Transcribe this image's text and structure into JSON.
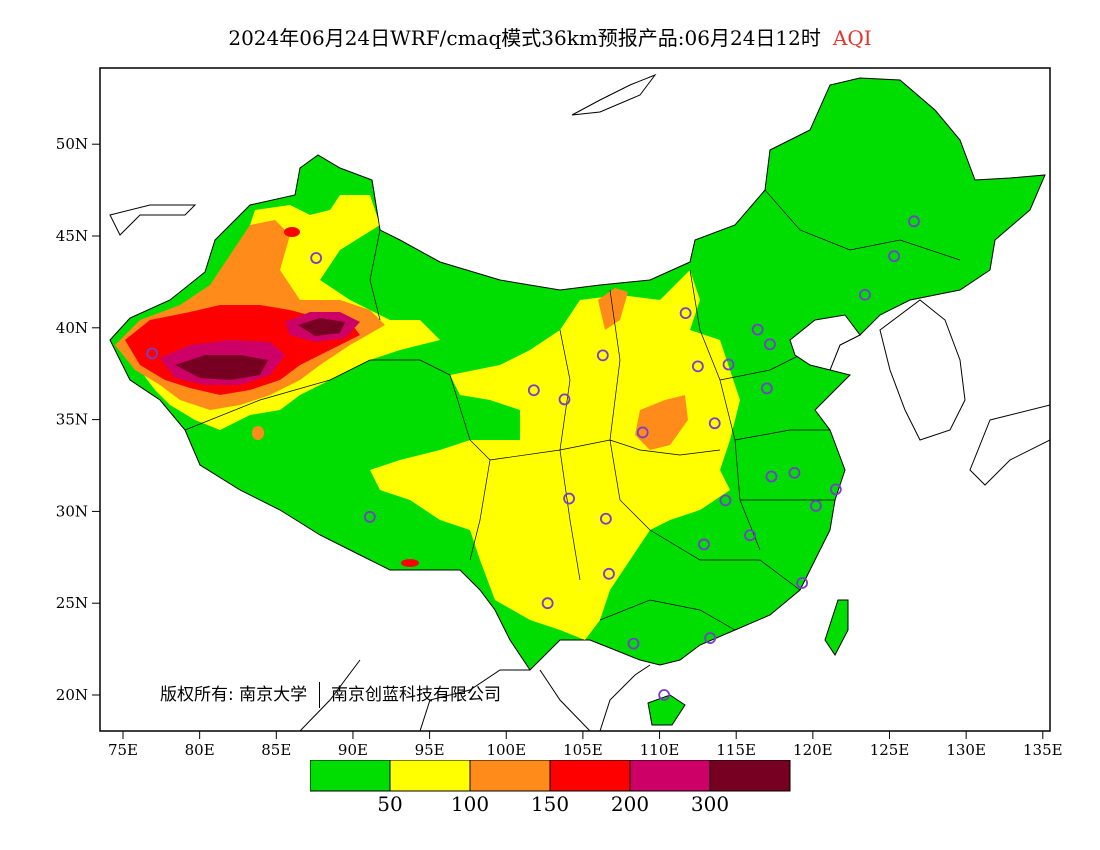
{
  "title": {
    "main": "2024年06月24日WRF/cmaq模式36km预报产品:06月24日12时",
    "variable": "AQI"
  },
  "colors": {
    "title_variable": "#e8322a",
    "good": "#00dd00",
    "moderate": "#ffff00",
    "sensitive": "#ff8c1a",
    "unhealthy": "#ff0000",
    "very_unhealthy": "#cc0066",
    "hazardous": "#770022",
    "station_marker": "#7a3ccf",
    "border": "#000000"
  },
  "map": {
    "lon_range": [
      73,
      135
    ],
    "lat_range": [
      18,
      54
    ],
    "lon_ticks": [
      "75E",
      "80E",
      "85E",
      "90E",
      "95E",
      "100E",
      "105E",
      "110E",
      "115E",
      "120E",
      "125E",
      "130E",
      "135E"
    ],
    "lat_ticks": [
      "20N",
      "25N",
      "30N",
      "35N",
      "40N",
      "45N",
      "50N"
    ],
    "stations": [
      {
        "lon": 87.6,
        "lat": 43.8
      },
      {
        "lon": 76.9,
        "lat": 38.6
      },
      {
        "lon": 91.1,
        "lat": 29.7
      },
      {
        "lon": 101.8,
        "lat": 36.6
      },
      {
        "lon": 103.8,
        "lat": 36.1
      },
      {
        "lon": 106.3,
        "lat": 38.5
      },
      {
        "lon": 111.7,
        "lat": 40.8
      },
      {
        "lon": 112.5,
        "lat": 37.9
      },
      {
        "lon": 108.9,
        "lat": 34.3
      },
      {
        "lon": 113.6,
        "lat": 34.8
      },
      {
        "lon": 114.5,
        "lat": 38.0
      },
      {
        "lon": 116.4,
        "lat": 39.9
      },
      {
        "lon": 117.2,
        "lat": 39.1
      },
      {
        "lon": 117.0,
        "lat": 36.7
      },
      {
        "lon": 123.4,
        "lat": 41.8
      },
      {
        "lon": 125.3,
        "lat": 43.9
      },
      {
        "lon": 126.6,
        "lat": 45.8
      },
      {
        "lon": 104.1,
        "lat": 30.7
      },
      {
        "lon": 106.5,
        "lat": 29.6
      },
      {
        "lon": 102.7,
        "lat": 25.0
      },
      {
        "lon": 106.7,
        "lat": 26.6
      },
      {
        "lon": 108.3,
        "lat": 22.8
      },
      {
        "lon": 113.3,
        "lat": 23.1
      },
      {
        "lon": 112.9,
        "lat": 28.2
      },
      {
        "lon": 114.3,
        "lat": 30.6
      },
      {
        "lon": 115.9,
        "lat": 28.7
      },
      {
        "lon": 117.3,
        "lat": 31.9
      },
      {
        "lon": 118.8,
        "lat": 32.1
      },
      {
        "lon": 120.2,
        "lat": 30.3
      },
      {
        "lon": 121.5,
        "lat": 31.2
      },
      {
        "lon": 119.3,
        "lat": 26.1
      },
      {
        "lon": 110.3,
        "lat": 20.0
      }
    ]
  },
  "copyright": {
    "prefix": "版权所有:",
    "org1": "南京大学",
    "org2": "南京创蓝科技有限公司"
  },
  "legend": {
    "labels": [
      "50",
      "100",
      "150",
      "200",
      "300"
    ]
  }
}
